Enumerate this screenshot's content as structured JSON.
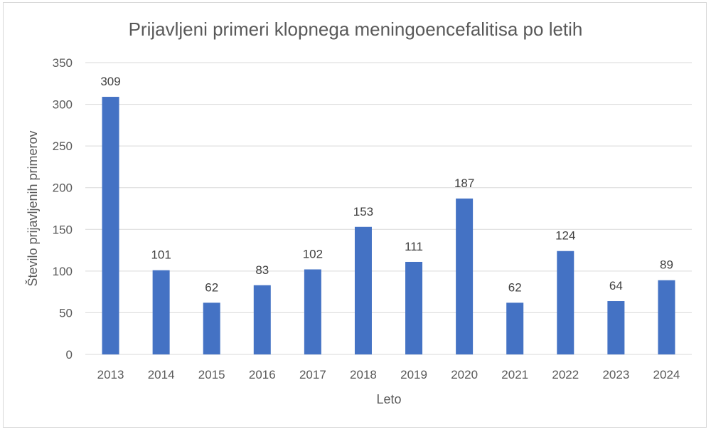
{
  "chart_data": {
    "type": "bar",
    "title": "Prijavljeni primeri klopnega meningoencefalitisa po letih",
    "xlabel": "Leto",
    "ylabel": "Število prijavljenih primerov",
    "categories": [
      "2013",
      "2014",
      "2015",
      "2016",
      "2017",
      "2018",
      "2019",
      "2020",
      "2021",
      "2022",
      "2023",
      "2024"
    ],
    "values": [
      309,
      101,
      62,
      83,
      102,
      153,
      111,
      187,
      62,
      124,
      64,
      89
    ],
    "ylim": [
      0,
      350
    ],
    "yticks": [
      0,
      50,
      100,
      150,
      200,
      250,
      300,
      350
    ],
    "grid": true,
    "data_labels": true,
    "bar_color": "#4472c4",
    "grid_color": "#d9d9d9",
    "text_color": "#595959"
  }
}
